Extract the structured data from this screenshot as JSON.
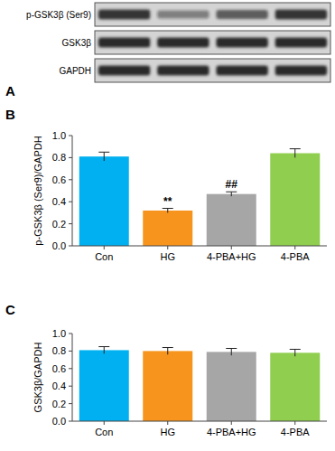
{
  "chart_data": [
    {
      "type": "blot",
      "title": "A",
      "rows": [
        {
          "name": "p-GSK3β (Ser9)",
          "values": [
            0.85,
            0.45,
            0.65,
            0.85
          ]
        },
        {
          "name": "GSK3β",
          "values": [
            0.9,
            0.9,
            0.9,
            0.9
          ]
        },
        {
          "name": "GAPDH",
          "values": [
            0.9,
            0.9,
            0.9,
            0.9
          ]
        }
      ]
    },
    {
      "type": "bar",
      "title": "B",
      "categories": [
        "Con",
        "HG",
        "4-PBA+HG",
        "4-PBA"
      ],
      "values": [
        0.81,
        0.32,
        0.47,
        0.84
      ],
      "errors": [
        0.04,
        0.02,
        0.02,
        0.04
      ],
      "colors": [
        "#00b0f0",
        "#f7941d",
        "#a6a6a6",
        "#8fce4f"
      ],
      "y_label": "p-GSK3β (Ser9)/GAPDH",
      "ylim": [
        0,
        1.0
      ],
      "yticks": [
        {
          "value": 0,
          "label": "0.0"
        },
        {
          "value": 0.2,
          "label": "0.2"
        },
        {
          "value": 0.4,
          "label": "0.4"
        },
        {
          "value": 0.6,
          "label": "0.6"
        },
        {
          "value": 0.8,
          "label": "0.8"
        },
        {
          "value": 1.0,
          "label": "1.0"
        }
      ],
      "annotations": [
        {
          "text": "**",
          "x": "HG"
        },
        {
          "text": "##",
          "x": "4-PBA+HG"
        }
      ]
    },
    {
      "type": "bar",
      "title": "C",
      "categories": [
        "Con",
        "HG",
        "4-PBA+HG",
        "4-PBA"
      ],
      "values": [
        0.81,
        0.8,
        0.79,
        0.78
      ],
      "errors": [
        0.04,
        0.04,
        0.04,
        0.04
      ],
      "colors": [
        "#00b0f0",
        "#f7941d",
        "#a6a6a6",
        "#8fce4f"
      ],
      "y_label": "GSK3β/GAPDH",
      "ylim": [
        0,
        1.0
      ],
      "yticks": [
        {
          "value": 0,
          "label": "0.0"
        },
        {
          "value": 0.2,
          "label": "0.2"
        },
        {
          "value": 0.4,
          "label": "0.4"
        },
        {
          "value": 0.6,
          "label": "0.6"
        },
        {
          "value": 0.8,
          "label": "0.8"
        },
        {
          "value": 1.0,
          "label": "1.0"
        }
      ]
    }
  ]
}
